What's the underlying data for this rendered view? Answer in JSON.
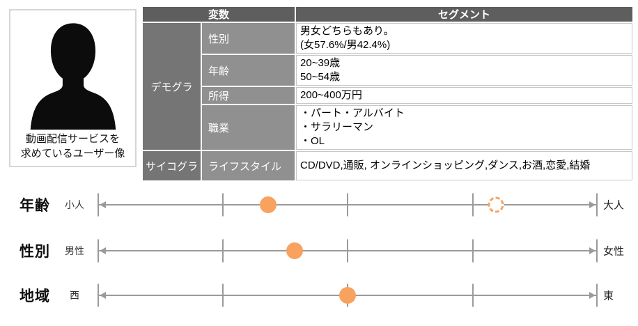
{
  "persona": {
    "caption_line1": "動画配信サービスを",
    "caption_line2": "求めているユーザー像"
  },
  "table": {
    "headers": {
      "variable": "変数",
      "segment": "セグメント"
    },
    "groups": [
      {
        "name": "デモグラ",
        "rows": [
          {
            "variable": "性別",
            "lines": [
              "男女どちらもあり。",
              "(女57.6%/男42.4%)"
            ]
          },
          {
            "variable": "年齢",
            "lines": [
              "20~39歳",
              "50~54歳"
            ]
          },
          {
            "variable": "所得",
            "lines": [
              "200~400万円"
            ]
          },
          {
            "variable": "職業",
            "lines": [
              "・パート・アルバイト",
              "・サラリーマン",
              "・OL"
            ]
          }
        ]
      },
      {
        "name": "サイコグラ",
        "rows": [
          {
            "variable": "ライフスタイル",
            "lines": [
              "CD/DVD,通販, オンラインショッピング,ダンス,お酒,恋愛,結婚"
            ]
          }
        ]
      }
    ]
  },
  "sliders": [
    {
      "title": "年齢",
      "left_label": "小人",
      "right_label": "大人",
      "markers": [
        {
          "style": "solid",
          "pos": 34.1
        },
        {
          "style": "dashed",
          "pos": 79.7
        }
      ]
    },
    {
      "title": "性別",
      "left_label": "男性",
      "right_label": "女性",
      "markers": [
        {
          "style": "solid",
          "pos": 39.4
        }
      ]
    },
    {
      "title": "地域",
      "left_label": "西",
      "right_label": "東",
      "markers": [
        {
          "style": "solid",
          "pos": 50.0
        }
      ]
    }
  ],
  "colors": {
    "accent_orange": "#F9A25F",
    "header_gray": "#5e5e5e",
    "group_gray": "#757575",
    "variable_gray": "#909090",
    "line_gray": "#9a9a9a",
    "border_gray": "#c6c6c6"
  }
}
